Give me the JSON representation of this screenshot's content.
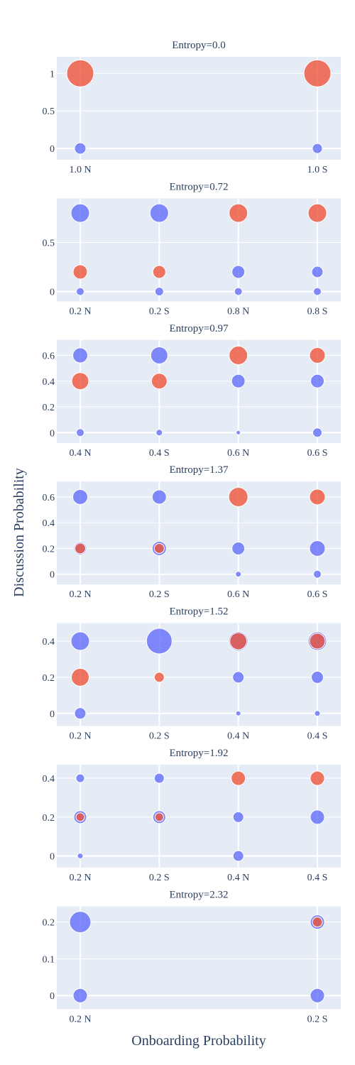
{
  "figure": {
    "xlabel": "Onboarding Probability",
    "ylabel": "Discussion Probability",
    "colors": {
      "plot_bg": "#e5ecf6",
      "grid": "#ffffff",
      "text": "#2a3f5f",
      "red": "#ef553b",
      "blue": "#636efa"
    }
  },
  "chart_data": [
    {
      "type": "scatter",
      "title": "Entropy=0.0",
      "categories": [
        "1.0 N",
        "1.0 S"
      ],
      "yticks": [
        0,
        0.5,
        1
      ],
      "ytick_labels": [
        "0",
        "0.5",
        "1"
      ],
      "ylim": [
        -0.15,
        1.22
      ],
      "points": [
        {
          "x": "1.0 N",
          "y": 1,
          "color": "red",
          "size": 38
        },
        {
          "x": "1.0 S",
          "y": 1,
          "color": "red",
          "size": 38
        },
        {
          "x": "1.0 N",
          "y": 0,
          "color": "blue",
          "size": 16
        },
        {
          "x": "1.0 S",
          "y": 0,
          "color": "blue",
          "size": 14
        }
      ]
    },
    {
      "type": "scatter",
      "title": "Entropy=0.72",
      "categories": [
        "0.2 N",
        "0.2 S",
        "0.8 N",
        "0.8 S"
      ],
      "yticks": [
        0,
        0.5
      ],
      "ytick_labels": [
        "0",
        "0.5"
      ],
      "ylim": [
        -0.1,
        0.95
      ],
      "points": [
        {
          "x": "0.2 N",
          "y": 0.8,
          "color": "blue",
          "size": 26
        },
        {
          "x": "0.2 S",
          "y": 0.8,
          "color": "blue",
          "size": 26
        },
        {
          "x": "0.8 N",
          "y": 0.8,
          "color": "red",
          "size": 26
        },
        {
          "x": "0.8 S",
          "y": 0.8,
          "color": "red",
          "size": 26
        },
        {
          "x": "0.2 N",
          "y": 0.2,
          "color": "red",
          "size": 20
        },
        {
          "x": "0.2 S",
          "y": 0.2,
          "color": "red",
          "size": 18
        },
        {
          "x": "0.8 N",
          "y": 0.2,
          "color": "blue",
          "size": 18
        },
        {
          "x": "0.8 S",
          "y": 0.2,
          "color": "blue",
          "size": 16
        },
        {
          "x": "0.2 N",
          "y": 0,
          "color": "blue",
          "size": 11
        },
        {
          "x": "0.2 S",
          "y": 0,
          "color": "blue",
          "size": 12
        },
        {
          "x": "0.8 N",
          "y": 0,
          "color": "blue",
          "size": 11
        },
        {
          "x": "0.8 S",
          "y": 0,
          "color": "blue",
          "size": 11
        }
      ]
    },
    {
      "type": "scatter",
      "title": "Entropy=0.97",
      "categories": [
        "0.4 N",
        "0.4 S",
        "0.6 N",
        "0.6 S"
      ],
      "yticks": [
        0,
        0.2,
        0.4,
        0.6
      ],
      "ytick_labels": [
        "0",
        "0.2",
        "0.4",
        "0.6"
      ],
      "ylim": [
        -0.08,
        0.72
      ],
      "points": [
        {
          "x": "0.4 N",
          "y": 0.6,
          "color": "blue",
          "size": 21
        },
        {
          "x": "0.4 S",
          "y": 0.6,
          "color": "blue",
          "size": 24
        },
        {
          "x": "0.6 N",
          "y": 0.6,
          "color": "red",
          "size": 26
        },
        {
          "x": "0.6 S",
          "y": 0.6,
          "color": "red",
          "size": 22
        },
        {
          "x": "0.4 N",
          "y": 0.4,
          "color": "red",
          "size": 24
        },
        {
          "x": "0.4 S",
          "y": 0.4,
          "color": "red",
          "size": 22
        },
        {
          "x": "0.6 N",
          "y": 0.4,
          "color": "blue",
          "size": 19
        },
        {
          "x": "0.6 S",
          "y": 0.4,
          "color": "blue",
          "size": 19
        },
        {
          "x": "0.4 N",
          "y": 0,
          "color": "blue",
          "size": 11
        },
        {
          "x": "0.4 S",
          "y": 0,
          "color": "blue",
          "size": 9
        },
        {
          "x": "0.6 N",
          "y": 0,
          "color": "blue",
          "size": 6
        },
        {
          "x": "0.6 S",
          "y": 0,
          "color": "blue",
          "size": 13
        }
      ]
    },
    {
      "type": "scatter",
      "title": "Entropy=1.37",
      "categories": [
        "0.2 N",
        "0.2 S",
        "0.6 N",
        "0.6 S"
      ],
      "yticks": [
        0,
        0.2,
        0.4,
        0.6
      ],
      "ytick_labels": [
        "0",
        "0.2",
        "0.4",
        "0.6"
      ],
      "ylim": [
        -0.08,
        0.72
      ],
      "points": [
        {
          "x": "0.2 N",
          "y": 0.6,
          "color": "blue",
          "size": 21
        },
        {
          "x": "0.2 S",
          "y": 0.6,
          "color": "blue",
          "size": 20
        },
        {
          "x": "0.6 N",
          "y": 0.6,
          "color": "red",
          "size": 27
        },
        {
          "x": "0.6 S",
          "y": 0.6,
          "color": "red",
          "size": 22
        },
        {
          "x": "0.2 N",
          "y": 0.2,
          "color": "blue",
          "size": 18
        },
        {
          "x": "0.2 N",
          "y": 0.2,
          "color": "red",
          "size": 15
        },
        {
          "x": "0.2 S",
          "y": 0.2,
          "color": "blue",
          "size": 20
        },
        {
          "x": "0.2 S",
          "y": 0.2,
          "color": "red",
          "size": 14
        },
        {
          "x": "0.6 N",
          "y": 0.2,
          "color": "blue",
          "size": 18
        },
        {
          "x": "0.6 S",
          "y": 0.2,
          "color": "blue",
          "size": 22
        },
        {
          "x": "0.6 N",
          "y": 0,
          "color": "blue",
          "size": 8
        },
        {
          "x": "0.6 S",
          "y": 0,
          "color": "blue",
          "size": 11
        }
      ]
    },
    {
      "type": "scatter",
      "title": "Entropy=1.52",
      "categories": [
        "0.2 N",
        "0.2 S",
        "0.4 N",
        "0.4 S"
      ],
      "yticks": [
        0,
        0.2,
        0.4
      ],
      "ytick_labels": [
        "0",
        "0.2",
        "0.4"
      ],
      "ylim": [
        -0.07,
        0.5
      ],
      "points": [
        {
          "x": "0.2 N",
          "y": 0.4,
          "color": "blue",
          "size": 26
        },
        {
          "x": "0.2 S",
          "y": 0.4,
          "color": "blue",
          "size": 36
        },
        {
          "x": "0.4 N",
          "y": 0.4,
          "color": "blue",
          "size": 27
        },
        {
          "x": "0.4 N",
          "y": 0.4,
          "color": "red",
          "size": 24
        },
        {
          "x": "0.4 S",
          "y": 0.4,
          "color": "blue",
          "size": 26
        },
        {
          "x": "0.4 S",
          "y": 0.4,
          "color": "red",
          "size": 22
        },
        {
          "x": "0.2 N",
          "y": 0.2,
          "color": "red",
          "size": 25
        },
        {
          "x": "0.2 S",
          "y": 0.2,
          "color": "red",
          "size": 14
        },
        {
          "x": "0.4 N",
          "y": 0.2,
          "color": "blue",
          "size": 16
        },
        {
          "x": "0.4 S",
          "y": 0.2,
          "color": "blue",
          "size": 17
        },
        {
          "x": "0.2 N",
          "y": 0,
          "color": "blue",
          "size": 16
        },
        {
          "x": "0.4 N",
          "y": 0,
          "color": "blue",
          "size": 7
        },
        {
          "x": "0.4 S",
          "y": 0,
          "color": "blue",
          "size": 8
        }
      ]
    },
    {
      "type": "scatter",
      "title": "Entropy=1.92",
      "categories": [
        "0.2 N",
        "0.2 S",
        "0.4 N",
        "0.4 S"
      ],
      "yticks": [
        0,
        0.2,
        0.4
      ],
      "ytick_labels": [
        "0",
        "0.2",
        "0.4"
      ],
      "ylim": [
        -0.06,
        0.47
      ],
      "points": [
        {
          "x": "0.2 N",
          "y": 0.4,
          "color": "blue",
          "size": 12
        },
        {
          "x": "0.2 S",
          "y": 0.4,
          "color": "blue",
          "size": 14
        },
        {
          "x": "0.4 N",
          "y": 0.4,
          "color": "red",
          "size": 20
        },
        {
          "x": "0.4 S",
          "y": 0.4,
          "color": "red",
          "size": 20
        },
        {
          "x": "0.2 N",
          "y": 0.2,
          "color": "blue",
          "size": 18
        },
        {
          "x": "0.2 N",
          "y": 0.2,
          "color": "red",
          "size": 12
        },
        {
          "x": "0.2 S",
          "y": 0.2,
          "color": "blue",
          "size": 18
        },
        {
          "x": "0.2 S",
          "y": 0.2,
          "color": "red",
          "size": 12
        },
        {
          "x": "0.4 N",
          "y": 0.2,
          "color": "blue",
          "size": 15
        },
        {
          "x": "0.4 S",
          "y": 0.2,
          "color": "blue",
          "size": 20
        },
        {
          "x": "0.2 N",
          "y": 0,
          "color": "blue",
          "size": 8
        },
        {
          "x": "0.4 N",
          "y": 0,
          "color": "blue",
          "size": 15
        }
      ]
    },
    {
      "type": "scatter",
      "title": "Entropy=2.32",
      "categories": [
        "0.2 N",
        "0.2 S"
      ],
      "yticks": [
        0,
        0.1,
        0.2
      ],
      "ytick_labels": [
        "0",
        "0.1",
        "0.2"
      ],
      "ylim": [
        -0.037,
        0.243
      ],
      "points": [
        {
          "x": "0.2 N",
          "y": 0.2,
          "color": "blue",
          "size": 30
        },
        {
          "x": "0.2 S",
          "y": 0.2,
          "color": "blue",
          "size": 20
        },
        {
          "x": "0.2 S",
          "y": 0.2,
          "color": "red",
          "size": 14
        },
        {
          "x": "0.2 N",
          "y": 0,
          "color": "blue",
          "size": 20
        },
        {
          "x": "0.2 S",
          "y": 0,
          "color": "blue",
          "size": 20
        }
      ]
    }
  ]
}
